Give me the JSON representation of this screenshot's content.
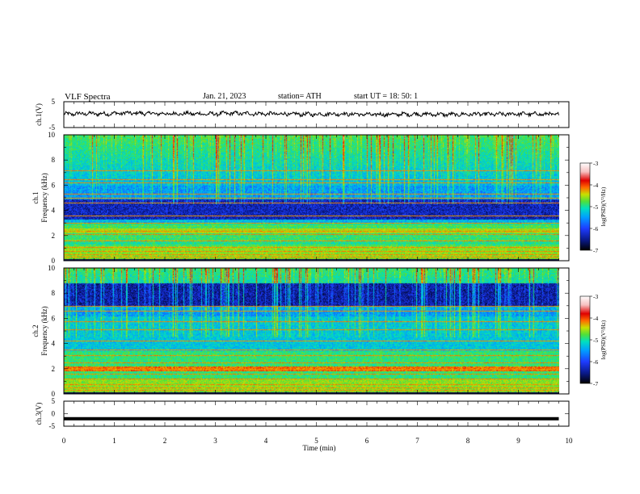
{
  "header": {
    "title": "VLF  Spectra",
    "date": "Jan.  21,  2023",
    "station": "station= ATH",
    "start": "start   UT   =    18:  50:  1"
  },
  "colors": {
    "waveform": "#000000",
    "colormap": [
      "#000000",
      "#0a1a8c",
      "#1e3cff",
      "#00a0ff",
      "#00e0c0",
      "#4fe03a",
      "#c8e000",
      "#ff6a00",
      "#e00000",
      "#f7c0c0",
      "#ffffff"
    ]
  },
  "chart_data": [
    {
      "type": "line",
      "panel": "ch1-waveform",
      "ylabel": "ch.1(V)",
      "ylim": [
        -5,
        5
      ],
      "yticks": [
        "5",
        "-5"
      ],
      "xlim": [
        0,
        10
      ],
      "series": [
        {
          "values": [
            0.2,
            0.4,
            0.3,
            0.6,
            0.5,
            0.3,
            0.4,
            0.2,
            0.5,
            0.4,
            0.3,
            0.2,
            0.1,
            0.3,
            0.2,
            0.0,
            0.1,
            0.2,
            0.1,
            0.0,
            0.2,
            0.1,
            0.3,
            0.2,
            0.1
          ]
        }
      ],
      "note": ""
    },
    {
      "type": "heatmap",
      "panel": "ch1-spectrogram",
      "ylabel": "ch.1\nFrequency  (kHz)",
      "xlim": [
        0,
        10
      ],
      "ylim": [
        0,
        10
      ],
      "yticks": [
        "0",
        "2",
        "4",
        "6",
        "8",
        "10"
      ],
      "colorbar": {
        "label": "log(PSD)(V²/Hz)",
        "range": [
          -7,
          -3
        ],
        "ticks": [
          "-3",
          "-4",
          "-5",
          "-6",
          "-7"
        ]
      }
    },
    {
      "type": "heatmap",
      "panel": "ch2-spectrogram",
      "ylabel": "ch.2\nFrequency  (kHz)",
      "xlim": [
        0,
        10
      ],
      "ylim": [
        0,
        10
      ],
      "yticks": [
        "0",
        "2",
        "4",
        "6",
        "8",
        "10"
      ],
      "colorbar": {
        "label": "log(PSD)(V²/Hz)",
        "range": [
          -7,
          -3
        ],
        "ticks": [
          "-3",
          "-4",
          "-5",
          "-6",
          "-7"
        ]
      }
    },
    {
      "type": "line",
      "panel": "ch3-waveform",
      "ylabel": "ch.3(V)",
      "ylim": [
        -5,
        5
      ],
      "yticks": [
        "5",
        "0",
        "-5"
      ],
      "xlim": [
        0,
        10
      ],
      "series": [
        {
          "values": [
            -2,
            -2,
            -2,
            -2,
            -2,
            -2,
            -2,
            -2,
            -2,
            -2,
            -2
          ]
        }
      ]
    }
  ],
  "xaxis": {
    "label": "Time  (min)",
    "ticks": [
      "0",
      "1",
      "2",
      "3",
      "4",
      "5",
      "6",
      "7",
      "8",
      "9",
      "10"
    ],
    "data_end": 9.8
  }
}
